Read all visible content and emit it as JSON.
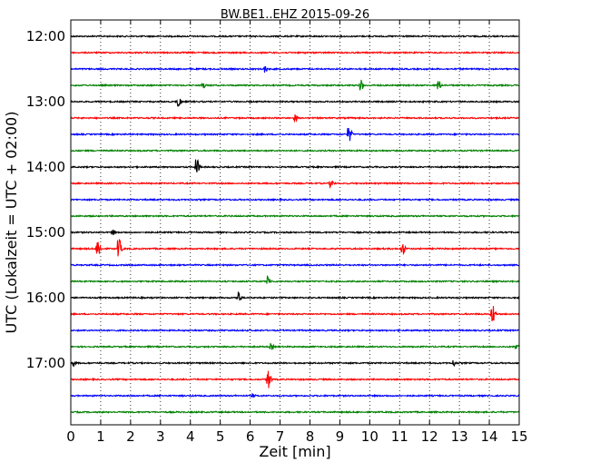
{
  "chart_data": {
    "type": "line",
    "title": "BW.BE1..EHZ 2015-09-26",
    "xlabel": "Zeit  [min]",
    "ylabel": "UTC (Lokalzeit = UTC + 02:00)",
    "xlim": [
      0,
      15
    ],
    "x_ticks": [
      "0",
      "1",
      "2",
      "3",
      "4",
      "5",
      "6",
      "7",
      "8",
      "9",
      "10",
      "11",
      "12",
      "13",
      "14",
      "15"
    ],
    "y_ticks": [
      "12:00",
      "13:00",
      "14:00",
      "15:00",
      "16:00",
      "17:00"
    ],
    "grid": {
      "x": "dotted",
      "y": "none"
    },
    "line_colors": [
      "#000000",
      "#ff0000",
      "#0000ff",
      "#008000"
    ],
    "series": [
      {
        "start": "12:00",
        "events": []
      },
      {
        "start": "12:15",
        "events": []
      },
      {
        "start": "12:30",
        "events": [
          {
            "t": 6.5,
            "a": 0.35
          }
        ]
      },
      {
        "start": "12:45",
        "events": [
          {
            "t": 4.4,
            "a": 0.45
          },
          {
            "t": 9.7,
            "a": 0.6
          },
          {
            "t": 12.3,
            "a": 0.55
          }
        ]
      },
      {
        "start": "13:00",
        "events": [
          {
            "t": 3.6,
            "a": 0.6
          }
        ]
      },
      {
        "start": "13:15",
        "events": [
          {
            "t": 7.5,
            "a": 0.4
          }
        ]
      },
      {
        "start": "13:30",
        "events": [
          {
            "t": 9.3,
            "a": 0.9
          }
        ]
      },
      {
        "start": "13:45",
        "events": []
      },
      {
        "start": "14:00",
        "events": [
          {
            "t": 4.2,
            "a": 1.0
          }
        ]
      },
      {
        "start": "14:15",
        "events": [
          {
            "t": 8.7,
            "a": 0.45
          }
        ]
      },
      {
        "start": "14:30",
        "events": []
      },
      {
        "start": "14:45",
        "events": []
      },
      {
        "start": "15:00",
        "events": [
          {
            "t": 1.4,
            "a": 0.3
          }
        ]
      },
      {
        "start": "15:15",
        "events": [
          {
            "t": 0.9,
            "a": 1.1
          },
          {
            "t": 1.6,
            "a": 1.1
          },
          {
            "t": 11.1,
            "a": 0.7
          }
        ]
      },
      {
        "start": "15:30",
        "events": []
      },
      {
        "start": "15:45",
        "events": [
          {
            "t": 6.6,
            "a": 0.55
          }
        ]
      },
      {
        "start": "16:00",
        "events": [
          {
            "t": 5.6,
            "a": 0.75
          }
        ]
      },
      {
        "start": "16:15",
        "events": [
          {
            "t": 14.1,
            "a": 1.15
          }
        ]
      },
      {
        "start": "16:30",
        "events": []
      },
      {
        "start": "16:45",
        "events": [
          {
            "t": 6.7,
            "a": 0.35
          },
          {
            "t": 14.9,
            "a": 0.45
          }
        ]
      },
      {
        "start": "17:00",
        "events": [
          {
            "t": 0.1,
            "a": 0.3
          },
          {
            "t": 12.8,
            "a": 0.4
          }
        ]
      },
      {
        "start": "17:15",
        "events": [
          {
            "t": 6.6,
            "a": 1.0
          }
        ]
      },
      {
        "start": "17:30",
        "events": [
          {
            "t": 6.1,
            "a": 0.2
          }
        ]
      },
      {
        "start": "17:45",
        "events": []
      }
    ]
  }
}
